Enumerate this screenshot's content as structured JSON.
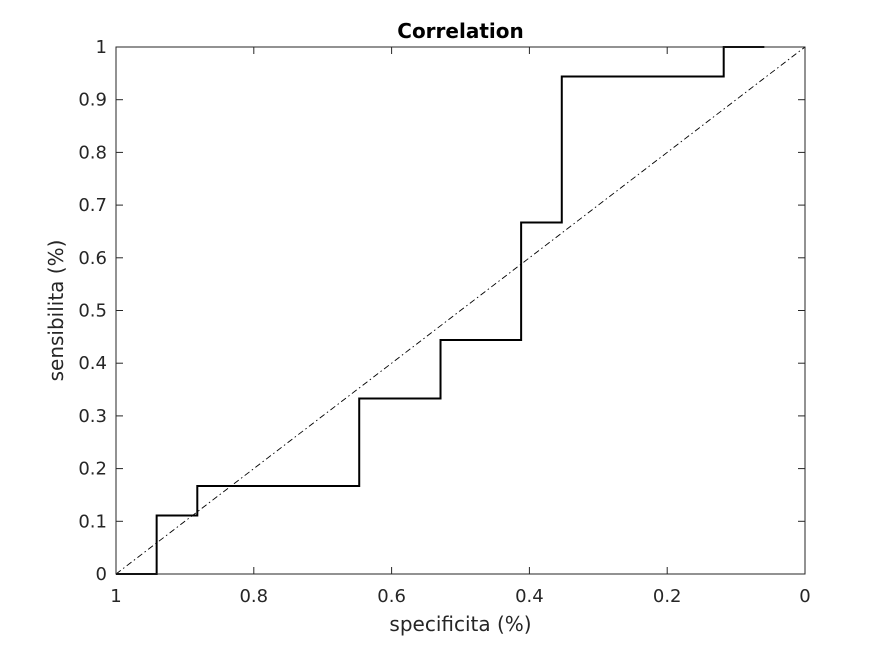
{
  "chart_data": {
    "type": "line",
    "title": "Correlation",
    "xlabel": "specificita (%)",
    "ylabel": "sensibilita (%)",
    "xlim": [
      1,
      0
    ],
    "ylim": [
      0,
      1
    ],
    "x_reversed": true,
    "grid": false,
    "x_ticks": [
      1,
      0.8,
      0.6,
      0.4,
      0.2,
      0
    ],
    "x_tick_labels": [
      "1",
      "0.8",
      "0.6",
      "0.4",
      "0.2",
      "0"
    ],
    "y_ticks": [
      0,
      0.1,
      0.2,
      0.3,
      0.4,
      0.5,
      0.6,
      0.7,
      0.8,
      0.9,
      1
    ],
    "y_tick_labels": [
      "0",
      "0.1",
      "0.2",
      "0.3",
      "0.4",
      "0.5",
      "0.6",
      "0.7",
      "0.8",
      "0.9",
      "1"
    ],
    "series": [
      {
        "style": "solid",
        "color": "#000000",
        "x": [
          1,
          0.941,
          0.941,
          0.882,
          0.882,
          0.647,
          0.647,
          0.529,
          0.529,
          0.412,
          0.412,
          0.353,
          0.353,
          0.118,
          0.118,
          0.059
        ],
        "y": [
          0,
          0,
          0.111,
          0.111,
          0.167,
          0.167,
          0.333,
          0.333,
          0.444,
          0.444,
          0.667,
          0.667,
          0.944,
          0.944,
          1,
          1
        ]
      },
      {
        "style": "dash-dot",
        "color": "#000000",
        "x": [
          1,
          0
        ],
        "y": [
          0,
          1
        ]
      }
    ]
  }
}
